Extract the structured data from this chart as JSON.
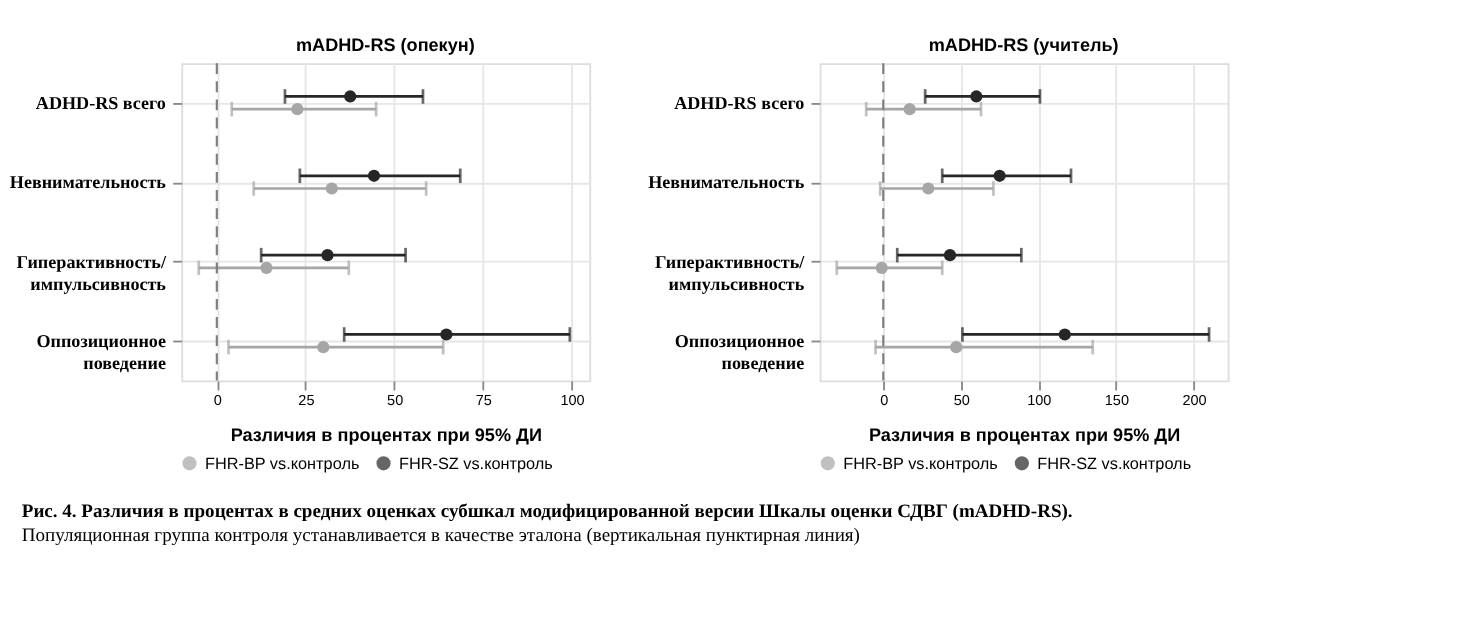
{
  "chart_data": [
    {
      "type": "scatter",
      "orientation": "horizontal",
      "title": "mADHD-RS (опекун)",
      "xlabel": "Различия в процентах при 95% ДИ",
      "categories": [
        "ADHD-RS всего",
        "Невнимательность",
        "Гиперактивность/\nимпульсивность",
        "Оппозиционное\nповедение"
      ],
      "xlim": [
        -10,
        105
      ],
      "xticks": [
        0,
        25,
        50,
        75,
        100
      ],
      "grid": true,
      "legend": "bottom",
      "marker": "circle",
      "ref_lines": [
        {
          "axis": "x",
          "value": 0,
          "color": "#7f7f7f",
          "line_style": "dashed"
        }
      ],
      "series": [
        {
          "name": "FHR-BP vs.контроль",
          "color": "#a6a6a6",
          "values": [
            22.7,
            32.4,
            14,
            30
          ],
          "errors": [
            [
              4.2,
              44.9
            ],
            [
              10.4,
              59
            ],
            [
              -5.1,
              37.2
            ],
            [
              3.3,
              63.8
            ]
          ]
        },
        {
          "name": "FHR-SZ vs.контроль",
          "color": "#262626",
          "values": [
            37.6,
            44.3,
            31.2,
            64.7
          ],
          "errors": [
            [
              19.2,
              58.1
            ],
            [
              23.4,
              68.6
            ],
            [
              12.5,
              53.2
            ],
            [
              35.9,
              99.5
            ]
          ]
        }
      ]
    },
    {
      "type": "scatter",
      "orientation": "horizontal",
      "title": "mADHD-RS (учитель)",
      "xlabel": "Различия в процентах при 95% ДИ",
      "categories": [
        "ADHD-RS всего",
        "Невнимательность",
        "Гиперактивность/\nимпульсивность",
        "Оппозиционное\nповедение"
      ],
      "xlim": [
        -41,
        222
      ],
      "xticks": [
        0,
        50,
        100,
        150,
        200
      ],
      "grid": true,
      "legend": "bottom",
      "marker": "circle",
      "ref_lines": [
        {
          "axis": "x",
          "value": 0,
          "color": "#7f7f7f",
          "line_style": "dashed"
        }
      ],
      "annotations": [
        "Рис. 4. Различия в процентах в средних оценках субшкал модифицированной версии Шкалы оценки СДВГ (mADHD-RS).",
        "Популяционная группа контроля устанавливается в качестве эталона (вертикальная пунктирная линия)"
      ],
      "series": [
        {
          "name": "FHR-BP vs.контроль",
          "color": "#a6a6a6",
          "values": [
            17,
            29,
            -1,
            47
          ],
          "errors": [
            [
              -11,
              63
            ],
            [
              -2,
              71
            ],
            [
              -30,
              38
            ],
            [
              -5,
              135
            ]
          ]
        },
        {
          "name": "FHR-SZ vs.контроль",
          "color": "#262626",
          "values": [
            60,
            75,
            43,
            117
          ],
          "errors": [
            [
              27,
              101
            ],
            [
              38,
              121
            ],
            [
              9,
              89
            ],
            [
              51,
              210
            ]
          ]
        }
      ]
    }
  ]
}
